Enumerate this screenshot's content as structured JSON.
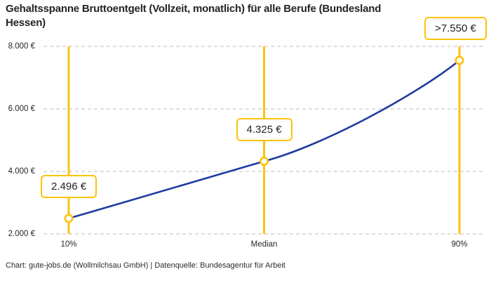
{
  "header": {
    "title": "Gehaltsspanne Bruttoentgelt (Vollzeit, monatlich) für alle Berufe (Bundesland Hessen)",
    "title_lines": [
      "Gehaltsspanne Bruttoentgelt (Vollzeit, monatlich) für alle Berufe (Bundesland",
      "Hessen)"
    ]
  },
  "footer": {
    "text": "Chart: gute-jobs.de (Wollmilchsau GmbH) | Datenquelle: Bundesagentur für Arbeit"
  },
  "chart_data": {
    "type": "line",
    "title": "Gehaltsspanne Bruttoentgelt (Vollzeit, monatlich) für alle Berufe (Bundesland Hessen)",
    "categories": [
      "10%",
      "Median",
      "90%"
    ],
    "values": [
      2496,
      4325,
      7550
    ],
    "points": [
      {
        "category": "10%",
        "value": 2496,
        "label": "2.496 €"
      },
      {
        "category": "Median",
        "value": 4325,
        "label": "4.325 €"
      },
      {
        "category": "90%",
        "value": 7550,
        "label": ">7.550 €"
      }
    ],
    "xlabel": "",
    "ylabel": "",
    "ylim": [
      2000,
      8000
    ],
    "y_ticks": [
      2000,
      4000,
      6000,
      8000
    ],
    "y_tick_labels": [
      "2.000 €",
      "4.000 €",
      "6.000 €",
      "8.000 €"
    ],
    "grid": "horizontal-dashed",
    "legend": "none",
    "colors": {
      "line": "#1E3CA0",
      "accent": "#FCC30B",
      "grid": "#CBCBCB",
      "text": "#222222"
    }
  }
}
